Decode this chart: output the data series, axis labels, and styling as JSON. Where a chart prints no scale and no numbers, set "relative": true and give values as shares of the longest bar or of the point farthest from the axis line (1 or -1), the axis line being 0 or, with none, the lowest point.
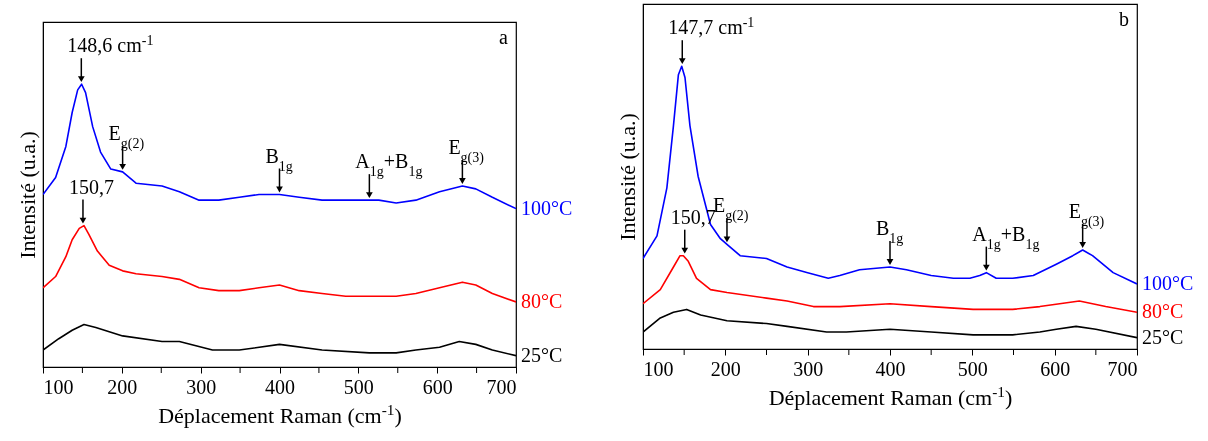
{
  "chart_data": [
    {
      "type": "line",
      "relative": true,
      "xlabel": "Déplacement Raman (cm$^{-1}$)",
      "ylabel": "Intensité (u.a.)",
      "xlim": [
        100,
        700
      ],
      "xticks": [
        100,
        {
          "value": 150,
          "label": null
        },
        200,
        {
          "value": 250,
          "label": null
        },
        300,
        {
          "value": 350,
          "label": null
        },
        400,
        {
          "value": 450,
          "label": null
        },
        500,
        {
          "value": 550,
          "label": null
        },
        600,
        {
          "value": 650,
          "label": null
        },
        700
      ],
      "series": [
        {
          "name": "100°C",
          "color": "#0000ff",
          "x": [
            100,
            116,
            129,
            137,
            144,
            149,
            154,
            163,
            173,
            186,
            201,
            218,
            251,
            273,
            298,
            323,
            349,
            374,
            400,
            425,
            454,
            484,
            514,
            526,
            548,
            573,
            603,
            632,
            649,
            670,
            700
          ],
          "values": [
            0.61,
            0.67,
            0.78,
            0.9,
            0.98,
            1,
            0.97,
            0.85,
            0.76,
            0.7,
            0.69,
            0.65,
            0.64,
            0.62,
            0.59,
            0.59,
            0.6,
            0.61,
            0.61,
            0.6,
            0.59,
            0.59,
            0.59,
            0.59,
            0.58,
            0.59,
            0.62,
            0.64,
            0.63,
            0.6,
            0.56
          ]
        },
        {
          "name": "80°C",
          "color": "#ff0000",
          "x": [
            100,
            116,
            129,
            137,
            146,
            152,
            158,
            169,
            184,
            201,
            218,
            251,
            273,
            298,
            323,
            349,
            374,
            400,
            425,
            454,
            484,
            514,
            548,
            573,
            603,
            632,
            649,
            670,
            700
          ],
          "values": [
            0.28,
            0.32,
            0.39,
            0.45,
            0.49,
            0.5,
            0.47,
            0.41,
            0.36,
            0.34,
            0.33,
            0.32,
            0.31,
            0.28,
            0.27,
            0.27,
            0.28,
            0.29,
            0.27,
            0.26,
            0.25,
            0.25,
            0.25,
            0.26,
            0.28,
            0.3,
            0.29,
            0.26,
            0.23
          ]
        },
        {
          "name": "25°C",
          "color": "#000000",
          "x": [
            100,
            120,
            137,
            152,
            167,
            201,
            251,
            273,
            315,
            349,
            400,
            454,
            514,
            548,
            573,
            603,
            628,
            649,
            670,
            700
          ],
          "values": [
            0.06,
            0.1,
            0.13,
            0.15,
            0.14,
            0.11,
            0.09,
            0.09,
            0.06,
            0.06,
            0.08,
            0.06,
            0.05,
            0.05,
            0.06,
            0.07,
            0.09,
            0.08,
            0.06,
            0.04
          ]
        }
      ],
      "annotations": [
        {
          "text": "148,6 cm$^{-1}$",
          "x": 148.6,
          "y": 1.0
        },
        {
          "text": "E$_{g(2)}$",
          "x": 201,
          "y": 0.69
        },
        {
          "text": "B$_{1g}$",
          "x": 400,
          "y": 0.61
        },
        {
          "text": "A$_{1g}$+B$_{1g}$",
          "x": 514,
          "y": 0.59
        },
        {
          "text": "E$_{g(3)}$",
          "x": 632,
          "y": 0.64
        },
        {
          "text": "150,7",
          "x": 150.7,
          "y": 0.5
        },
        "a"
      ]
    },
    {
      "type": "line",
      "relative": true,
      "xlabel": "Déplacement Raman (cm$^{-1}$)",
      "ylabel": "Intensité (u.a.)",
      "xlim": [
        100,
        700
      ],
      "xticks": [
        100,
        {
          "value": 150,
          "label": null
        },
        200,
        {
          "value": 250,
          "label": null
        },
        300,
        {
          "value": 350,
          "label": null
        },
        400,
        {
          "value": 450,
          "label": null
        },
        500,
        {
          "value": 550,
          "label": null
        },
        600,
        {
          "value": 650,
          "label": null
        },
        700
      ],
      "series": [
        {
          "name": "100°C",
          "color": "#0000ff",
          "x": [
            100,
            117,
            129,
            137,
            143,
            147,
            151,
            157,
            167,
            182,
            194,
            202,
            218,
            250,
            275,
            300,
            325,
            339,
            363,
            400,
            420,
            450,
            477,
            497,
            509,
            517,
            529,
            549,
            574,
            602,
            622,
            634,
            646,
            671,
            700
          ],
          "values": [
            0.32,
            0.4,
            0.57,
            0.79,
            0.97,
            1,
            0.96,
            0.79,
            0.61,
            0.44,
            0.39,
            0.37,
            0.33,
            0.32,
            0.29,
            0.27,
            0.25,
            0.26,
            0.28,
            0.29,
            0.28,
            0.26,
            0.25,
            0.25,
            0.26,
            0.27,
            0.25,
            0.25,
            0.26,
            0.3,
            0.33,
            0.35,
            0.33,
            0.27,
            0.23
          ]
        },
        {
          "name": "80°C",
          "color": "#ff0000",
          "x": [
            100,
            121,
            137,
            145,
            149,
            155,
            165,
            182,
            202,
            250,
            275,
            307,
            339,
            400,
            450,
            501,
            549,
            582,
            606,
            630,
            662,
            700
          ],
          "values": [
            0.16,
            0.21,
            0.29,
            0.33,
            0.33,
            0.31,
            0.25,
            0.21,
            0.2,
            0.18,
            0.17,
            0.15,
            0.15,
            0.16,
            0.15,
            0.14,
            0.14,
            0.15,
            0.16,
            0.17,
            0.15,
            0.13
          ]
        },
        {
          "name": "25°C",
          "color": "#000000",
          "x": [
            100,
            121,
            137,
            153,
            170,
            202,
            250,
            275,
            323,
            347,
            400,
            450,
            501,
            549,
            582,
            602,
            626,
            650,
            700
          ],
          "values": [
            0.06,
            0.11,
            0.13,
            0.14,
            0.12,
            0.1,
            0.09,
            0.08,
            0.06,
            0.06,
            0.07,
            0.06,
            0.05,
            0.05,
            0.06,
            0.07,
            0.08,
            0.07,
            0.04
          ]
        }
      ],
      "annotations": [
        {
          "text": "147,7 cm$^{-1}$",
          "x": 147.7,
          "y": 1.0
        },
        {
          "text": "E$_{g(2)}$",
          "x": 202,
          "y": 0.37
        },
        {
          "text": "B$_{1g}$",
          "x": 400,
          "y": 0.29
        },
        {
          "text": "A$_{1g}$+B$_{1g}$",
          "x": 517,
          "y": 0.27
        },
        {
          "text": "E$_{g(3)}$",
          "x": 634,
          "y": 0.35
        },
        {
          "text": "150,7",
          "x": 150.7,
          "y": 0.33
        },
        "b"
      ]
    }
  ]
}
